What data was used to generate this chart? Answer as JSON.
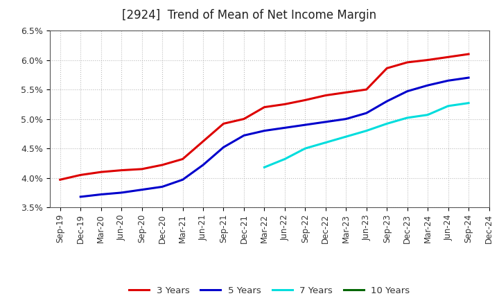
{
  "title": "[2924]  Trend of Mean of Net Income Margin",
  "ylim": [
    0.035,
    0.065
  ],
  "yticks": [
    0.035,
    0.04,
    0.045,
    0.05,
    0.055,
    0.06,
    0.065
  ],
  "ytick_labels": [
    "3.5%",
    "4.0%",
    "4.5%",
    "5.0%",
    "5.5%",
    "6.0%",
    "6.5%"
  ],
  "x_labels": [
    "Sep-19",
    "Dec-19",
    "Mar-20",
    "Jun-20",
    "Sep-20",
    "Dec-20",
    "Mar-21",
    "Jun-21",
    "Sep-21",
    "Dec-21",
    "Mar-22",
    "Jun-22",
    "Sep-22",
    "Dec-22",
    "Mar-23",
    "Jun-23",
    "Sep-23",
    "Dec-23",
    "Mar-24",
    "Jun-24",
    "Sep-24",
    "Dec-24"
  ],
  "series_3yr": {
    "label": "3 Years",
    "color": "#dd0000",
    "x": [
      0,
      1,
      2,
      3,
      4,
      5,
      6,
      7,
      8,
      9,
      10,
      11,
      12,
      13,
      14,
      15,
      16,
      17,
      18,
      19,
      20
    ],
    "y": [
      0.0397,
      0.0405,
      0.041,
      0.0413,
      0.0415,
      0.0422,
      0.0432,
      0.0462,
      0.0492,
      0.05,
      0.052,
      0.0525,
      0.0532,
      0.054,
      0.0545,
      0.055,
      0.0586,
      0.0596,
      0.06,
      0.0605,
      0.061
    ]
  },
  "series_5yr": {
    "label": "5 Years",
    "color": "#0000cc",
    "x": [
      1,
      2,
      3,
      4,
      5,
      6,
      7,
      8,
      9,
      10,
      11,
      12,
      13,
      14,
      15,
      16,
      17,
      18,
      19,
      20
    ],
    "y": [
      0.0368,
      0.0372,
      0.0375,
      0.038,
      0.0385,
      0.0397,
      0.0422,
      0.0452,
      0.0472,
      0.048,
      0.0485,
      0.049,
      0.0495,
      0.05,
      0.051,
      0.053,
      0.0547,
      0.0557,
      0.0565,
      0.057
    ]
  },
  "series_7yr": {
    "label": "7 Years",
    "color": "#00dddd",
    "x": [
      10,
      11,
      12,
      13,
      14,
      15,
      16,
      17,
      18,
      19,
      20
    ],
    "y": [
      0.0418,
      0.0432,
      0.045,
      0.046,
      0.047,
      0.048,
      0.0492,
      0.0502,
      0.0507,
      0.0522,
      0.0527
    ]
  },
  "series_10yr": {
    "label": "10 Years",
    "color": "#006600",
    "x": [],
    "y": []
  },
  "background_color": "#ffffff",
  "grid_color": "#bbbbbb",
  "title_fontsize": 12,
  "axis_fontsize": 8.5,
  "legend_fontsize": 9.5
}
